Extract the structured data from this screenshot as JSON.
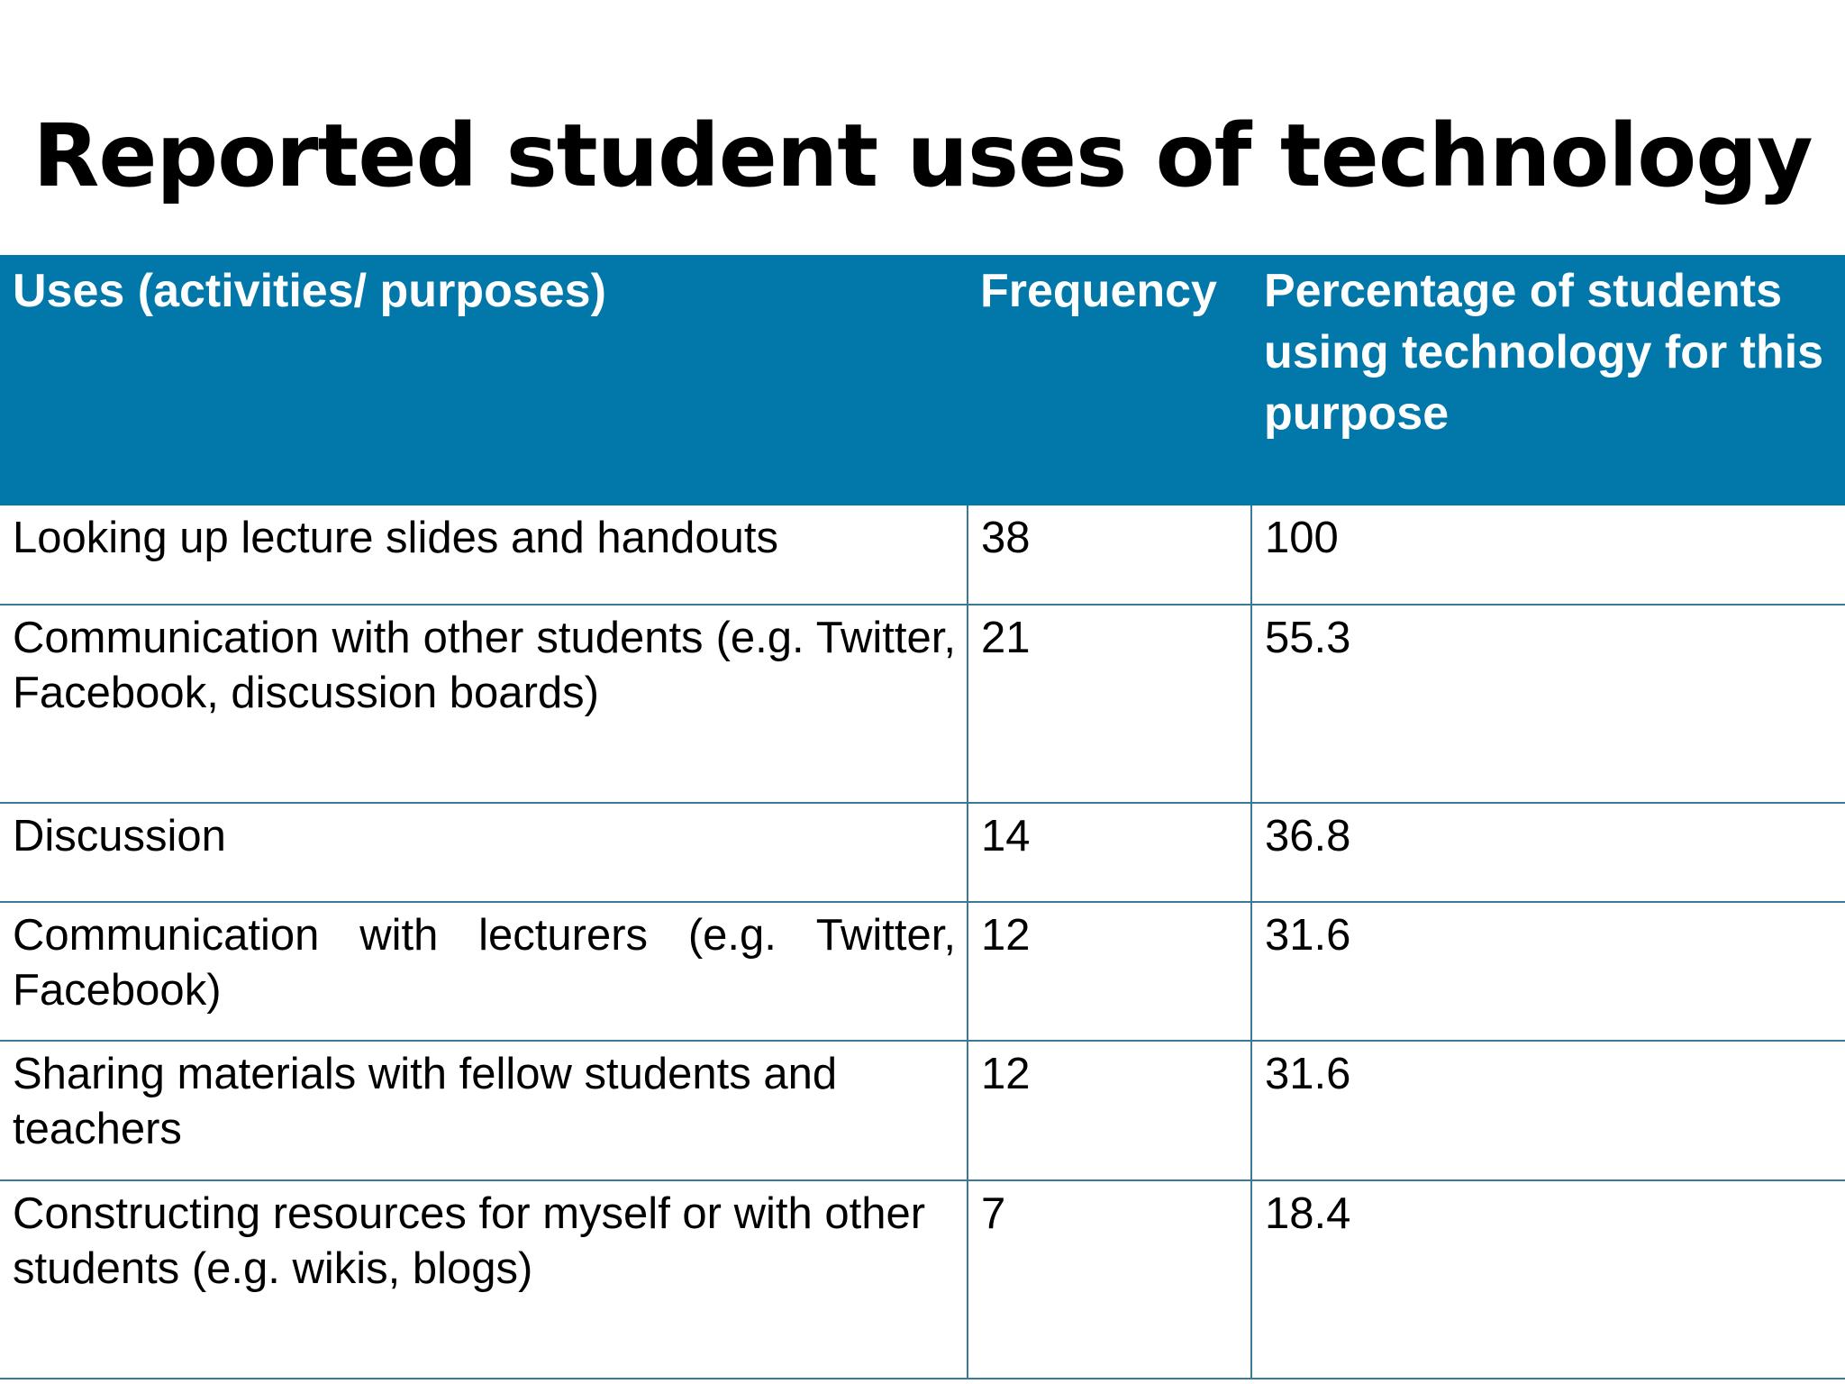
{
  "title": "Reported student uses of technology",
  "table": {
    "headers": [
      "Uses (activities/ purposes)",
      "Frequency",
      "Percentage of students using technology for this purpose"
    ],
    "rows": [
      {
        "use": "Looking up lecture slides and handouts",
        "frequency": "38",
        "percentage": "100"
      },
      {
        "use": "Communication with other students (e.g. Twitter, Facebook, discussion boards)",
        "frequency": "21",
        "percentage": "55.3"
      },
      {
        "use": "Discussion",
        "frequency": "14",
        "percentage": "36.8"
      },
      {
        "use": "Communication with lecturers (e.g. Twitter, Facebook)",
        "frequency": "12",
        "percentage": "31.6"
      },
      {
        "use": "Sharing materials with fellow students and teachers",
        "frequency": "12",
        "percentage": "31.6"
      },
      {
        "use": "Constructing resources for myself or with other students (e.g. wikis, blogs)",
        "frequency": "7",
        "percentage": "18.4"
      }
    ]
  },
  "colors": {
    "header_bg": "#0277a9",
    "header_text": "#ffffff",
    "grid_line": "#3a7a98"
  }
}
